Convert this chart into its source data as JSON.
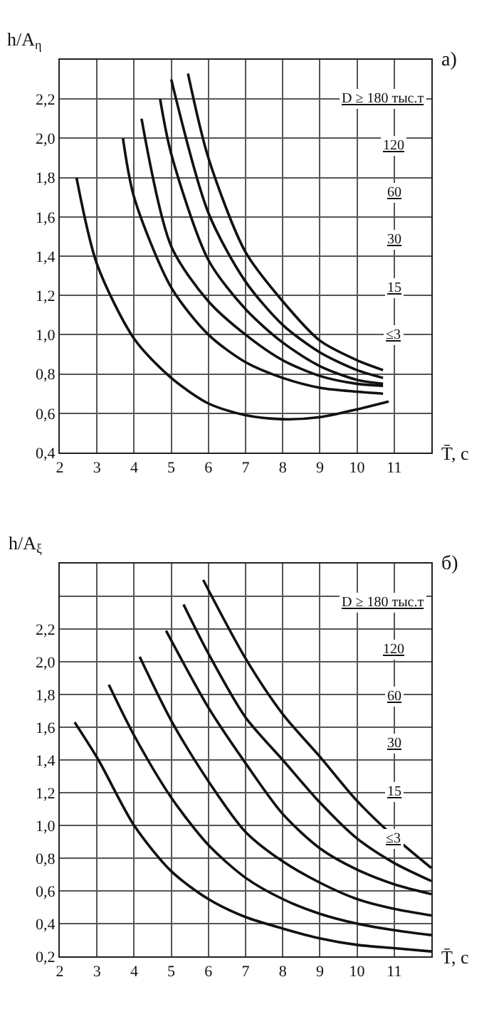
{
  "chart_data": [
    {
      "type": "line",
      "title": "a)",
      "ylabel": "h/A$_{η}$",
      "xlabel": "T̄, c",
      "xlim": [
        2,
        12
      ],
      "ylim": [
        0.4,
        2.4
      ],
      "xticks": [
        2,
        3,
        4,
        5,
        6,
        7,
        8,
        9,
        10,
        11
      ],
      "yticks": [
        {
          "value": 0.4,
          "label": "0,4"
        },
        {
          "value": 0.6,
          "label": "0,6"
        },
        {
          "value": 0.8,
          "label": "0,8"
        },
        {
          "value": 1.0,
          "label": "1,0"
        },
        {
          "value": 1.2,
          "label": "1,2"
        },
        {
          "value": 1.4,
          "label": "1,4"
        },
        {
          "value": 1.6,
          "label": "1,6"
        },
        {
          "value": 1.8,
          "label": "1,8"
        },
        {
          "value": 2.0,
          "label": "2,0"
        },
        {
          "value": 2.2,
          "label": "2,2"
        }
      ],
      "grid": true,
      "legend": false,
      "marker": "none",
      "line_style": "solid",
      "annotations": [
        "D ≥ 180 тыс.т",
        "120",
        "60",
        "30",
        "15",
        "≤3"
      ],
      "series": [
        {
          "color": "#111111",
          "x": [
            5.45,
            6,
            7,
            8,
            9,
            10,
            10.7
          ],
          "values": [
            2.33,
            1.9,
            1.42,
            1.17,
            0.97,
            0.87,
            0.82
          ]
        },
        {
          "color": "#111111",
          "x": [
            5.0,
            6,
            7,
            8,
            9,
            10,
            10.7
          ],
          "values": [
            2.3,
            1.62,
            1.27,
            1.05,
            0.91,
            0.82,
            0.78
          ]
        },
        {
          "color": "#111111",
          "x": [
            4.7,
            5,
            6,
            7,
            8,
            9,
            10,
            10.7
          ],
          "values": [
            2.2,
            1.92,
            1.38,
            1.13,
            0.96,
            0.84,
            0.77,
            0.75
          ]
        },
        {
          "color": "#111111",
          "x": [
            4.2,
            5,
            6,
            7,
            8,
            9,
            10,
            10.7
          ],
          "values": [
            2.1,
            1.45,
            1.17,
            1.0,
            0.87,
            0.79,
            0.75,
            0.74
          ]
        },
        {
          "color": "#111111",
          "x": [
            3.7,
            4,
            5,
            6,
            7,
            8,
            9,
            10,
            10.7
          ],
          "values": [
            2.0,
            1.7,
            1.24,
            1.0,
            0.86,
            0.78,
            0.73,
            0.71,
            0.7
          ]
        },
        {
          "color": "#111111",
          "x": [
            2.45,
            3,
            4,
            5,
            6,
            7,
            8,
            9,
            10,
            10.85
          ],
          "values": [
            1.8,
            1.36,
            0.98,
            0.78,
            0.65,
            0.59,
            0.57,
            0.58,
            0.62,
            0.66
          ]
        }
      ]
    },
    {
      "type": "line",
      "title": "б)",
      "ylabel": "h/A$_{ξ}$",
      "xlabel": "T̄, c",
      "xlim": [
        2,
        12
      ],
      "ylim": [
        0.2,
        2.6
      ],
      "xticks": [
        2,
        3,
        4,
        5,
        6,
        7,
        8,
        9,
        10,
        11
      ],
      "yticks": [
        {
          "value": 0.2,
          "label": "0,2"
        },
        {
          "value": 0.4,
          "label": "0,4"
        },
        {
          "value": 0.6,
          "label": "0,6"
        },
        {
          "value": 0.8,
          "label": "0,8"
        },
        {
          "value": 1.0,
          "label": "1,0"
        },
        {
          "value": 1.2,
          "label": "1,2"
        },
        {
          "value": 1.4,
          "label": "1,4"
        },
        {
          "value": 1.6,
          "label": "1,6"
        },
        {
          "value": 1.8,
          "label": "1,8"
        },
        {
          "value": 2.0,
          "label": "2,0"
        },
        {
          "value": 2.2,
          "label": "2,2"
        },
        {
          "value": 2.4,
          "label": null
        }
      ],
      "grid": true,
      "legend": false,
      "marker": "none",
      "line_style": "solid",
      "annotations": [
        "D ≥ 180 тыс.т",
        "120",
        "60",
        "30",
        "15",
        "≤3"
      ],
      "series": [
        {
          "color": "#111111",
          "x": [
            5.86,
            7,
            8,
            9,
            10,
            11,
            12
          ],
          "values": [
            2.5,
            2.02,
            1.68,
            1.42,
            1.15,
            0.93,
            0.74
          ]
        },
        {
          "color": "#111111",
          "x": [
            5.33,
            6,
            7,
            8,
            9,
            10,
            11,
            12
          ],
          "values": [
            2.35,
            2.05,
            1.66,
            1.4,
            1.14,
            0.92,
            0.77,
            0.66
          ]
        },
        {
          "color": "#111111",
          "x": [
            4.86,
            6,
            7,
            8,
            9,
            10,
            11,
            12
          ],
          "values": [
            2.19,
            1.72,
            1.38,
            1.07,
            0.86,
            0.73,
            0.64,
            0.58
          ]
        },
        {
          "color": "#111111",
          "x": [
            4.15,
            5,
            6,
            7,
            8,
            9,
            10,
            11,
            12
          ],
          "values": [
            2.03,
            1.64,
            1.27,
            0.96,
            0.78,
            0.65,
            0.55,
            0.49,
            0.45
          ]
        },
        {
          "color": "#111111",
          "x": [
            3.32,
            4,
            5,
            6,
            7,
            8,
            9,
            10,
            11,
            12
          ],
          "values": [
            1.86,
            1.55,
            1.17,
            0.88,
            0.68,
            0.55,
            0.46,
            0.4,
            0.36,
            0.33
          ]
        },
        {
          "color": "#111111",
          "x": [
            2.4,
            3.04,
            4,
            5,
            6,
            7,
            8,
            9,
            10,
            11,
            12
          ],
          "values": [
            1.63,
            1.4,
            1.0,
            0.72,
            0.55,
            0.44,
            0.37,
            0.31,
            0.27,
            0.25,
            0.23
          ]
        }
      ]
    }
  ]
}
